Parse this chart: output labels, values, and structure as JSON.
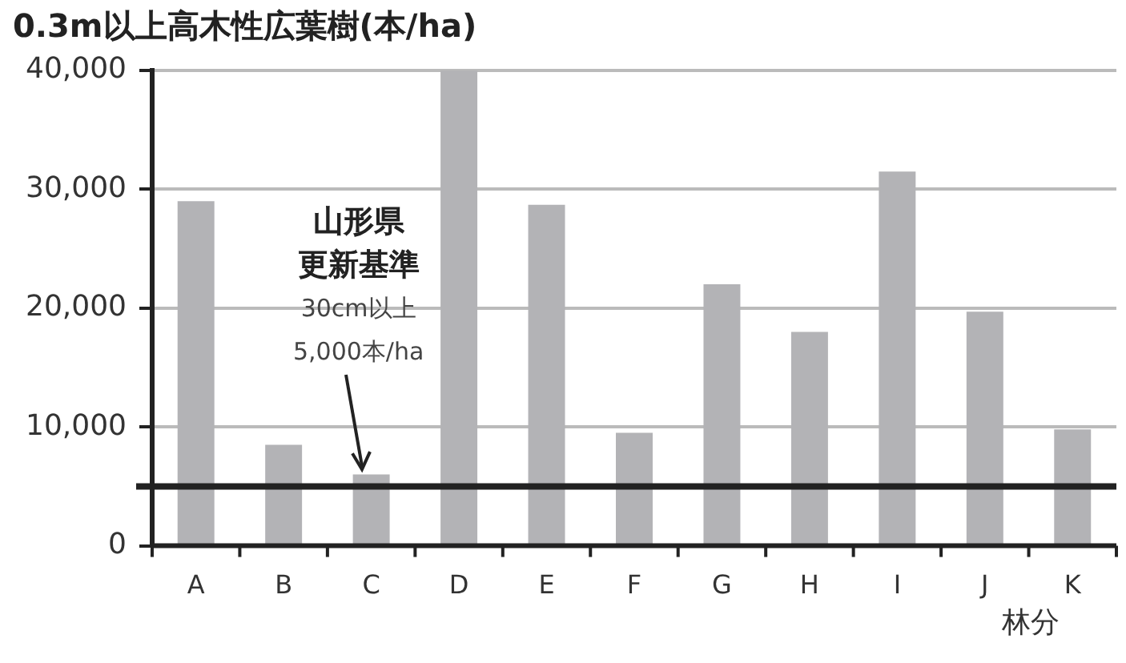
{
  "chart_data": {
    "type": "bar",
    "title": "0.3m以上高木性広葉樹(本/ha)",
    "xlabel": "林分",
    "categories": [
      "A",
      "B",
      "C",
      "D",
      "E",
      "F",
      "G",
      "H",
      "I",
      "J",
      "K"
    ],
    "values": [
      29000,
      8500,
      6000,
      40000,
      28700,
      9500,
      22000,
      18000,
      31500,
      19700,
      9800
    ],
    "color": "#b3b3b6",
    "ylim": [
      0,
      40000
    ],
    "yticks": [
      {
        "value": 0,
        "label": "0"
      },
      {
        "value": 10000,
        "label": "10,000"
      },
      {
        "value": 20000,
        "label": "20,000"
      },
      {
        "value": 30000,
        "label": "30,000"
      },
      {
        "value": 40000,
        "label": "40,000"
      }
    ],
    "grid": "y",
    "legend": false,
    "ref_lines": [
      {
        "axis": "y",
        "value": 5000,
        "label": "山形県更新基準",
        "color": "#222222"
      }
    ],
    "annotations": [
      {
        "text": "30cm以上\n5,000本/ha",
        "x": "C",
        "y": 6000
      }
    ]
  }
}
